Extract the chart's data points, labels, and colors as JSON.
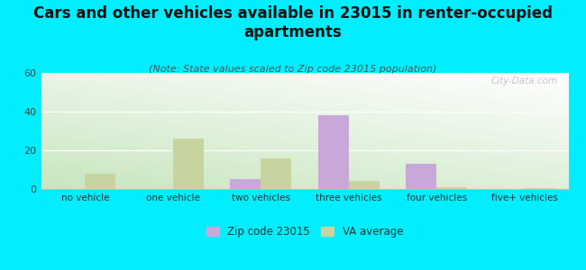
{
  "title": "Cars and other vehicles available in 23015 in renter-occupied\napartments",
  "subtitle": "(Note: State values scaled to Zip code 23015 population)",
  "categories": [
    "no vehicle",
    "one vehicle",
    "two vehicles",
    "three vehicles",
    "four vehicles",
    "five+ vehicles"
  ],
  "zip_values": [
    0,
    0,
    5,
    38,
    13,
    0
  ],
  "va_values": [
    8,
    26,
    16,
    4,
    1,
    0.5
  ],
  "zip_color": "#c8a8d8",
  "va_color": "#c8d4a0",
  "background_color": "#00eeff",
  "ylim": [
    0,
    60
  ],
  "yticks": [
    0,
    20,
    40,
    60
  ],
  "legend_zip": "Zip code 23015",
  "legend_va": "VA average",
  "bar_width": 0.35,
  "title_fontsize": 12,
  "subtitle_fontsize": 8
}
